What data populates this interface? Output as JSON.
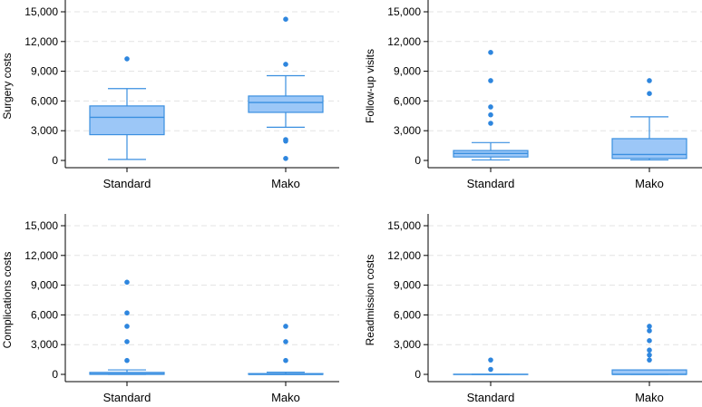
{
  "colors": {
    "box_fill": "#9cc7f7",
    "box_stroke": "#3a8fe0",
    "outlier": "#2e86de",
    "grid": "#e3e3e3",
    "axis": "#000000"
  },
  "chart_data": [
    {
      "type": "box",
      "ylabel": "Surgery costs",
      "categories": [
        "Standard",
        "Mako"
      ],
      "yticks": [
        0,
        3000,
        6000,
        9000,
        12000,
        15000
      ],
      "ytick_labels": [
        "0",
        "3,000",
        "6,000",
        "9,000",
        "12,000",
        "15,000"
      ],
      "ylim": [
        0,
        15000
      ],
      "boxes": [
        {
          "name": "Standard",
          "whisker_low": 100,
          "q1": 2600,
          "median": 4350,
          "q3": 5500,
          "whisker_high": 7250,
          "outliers": [
            10250
          ]
        },
        {
          "name": "Mako",
          "whisker_low": 3350,
          "q1": 4850,
          "median": 5850,
          "q3": 6500,
          "whisker_high": 8550,
          "outliers": [
            14250,
            9700,
            2100,
            1950,
            200
          ]
        }
      ]
    },
    {
      "type": "box",
      "ylabel": "Follow-up visits",
      "categories": [
        "Standard",
        "Mako"
      ],
      "yticks": [
        0,
        3000,
        6000,
        9000,
        12000,
        15000
      ],
      "ytick_labels": [
        "0",
        "3,000",
        "6,000",
        "9,000",
        "12,000",
        "15,000"
      ],
      "ylim": [
        0,
        15000
      ],
      "boxes": [
        {
          "name": "Standard",
          "whisker_low": 50,
          "q1": 350,
          "median": 700,
          "q3": 1000,
          "whisker_high": 1800,
          "outliers": [
            10900,
            8050,
            5400,
            4600,
            3750
          ]
        },
        {
          "name": "Mako",
          "whisker_low": 50,
          "q1": 200,
          "median": 600,
          "q3": 2200,
          "whisker_high": 4400,
          "outliers": [
            8050,
            6750
          ]
        }
      ]
    },
    {
      "type": "box",
      "ylabel": "Complications costs",
      "categories": [
        "Standard",
        "Mako"
      ],
      "yticks": [
        0,
        3000,
        6000,
        9000,
        12000,
        15000
      ],
      "ytick_labels": [
        "0",
        "3,000",
        "6,000",
        "9,000",
        "12,000",
        "15,000"
      ],
      "ylim": [
        0,
        15000
      ],
      "boxes": [
        {
          "name": "Standard",
          "whisker_low": 0,
          "q1": 0,
          "median": 50,
          "q3": 200,
          "whisker_high": 450,
          "outliers": [
            9300,
            6200,
            4850,
            3300,
            1400
          ]
        },
        {
          "name": "Mako",
          "whisker_low": 0,
          "q1": 0,
          "median": 0,
          "q3": 80,
          "whisker_high": 220,
          "outliers": [
            4850,
            3300,
            1400
          ]
        }
      ]
    },
    {
      "type": "box",
      "ylabel": "Readmission costs",
      "categories": [
        "Standard",
        "Mako"
      ],
      "yticks": [
        0,
        3000,
        6000,
        9000,
        12000,
        15000
      ],
      "ytick_labels": [
        "0",
        "3,000",
        "6,000",
        "9,000",
        "12,000",
        "15,000"
      ],
      "ylim": [
        0,
        15000
      ],
      "boxes": [
        {
          "name": "Standard",
          "whisker_low": 0,
          "q1": 0,
          "median": 0,
          "q3": 0,
          "whisker_high": 0,
          "outliers": [
            1450,
            500
          ]
        },
        {
          "name": "Mako",
          "whisker_low": 0,
          "q1": 0,
          "median": 0,
          "q3": 450,
          "whisker_high": 450,
          "outliers": [
            4850,
            4400,
            3400,
            2450,
            1950,
            1450
          ]
        }
      ]
    }
  ]
}
